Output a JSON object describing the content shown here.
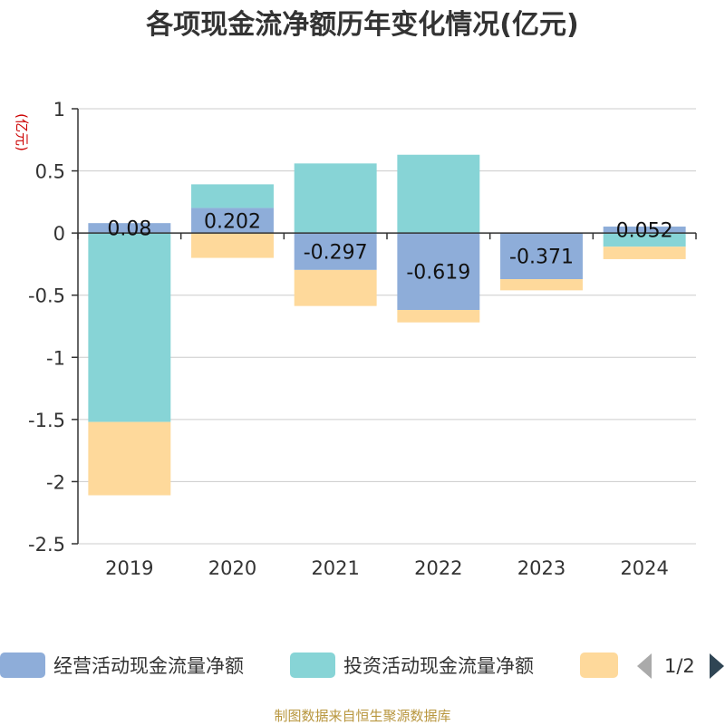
{
  "chart_data": {
    "type": "bar",
    "stacked": true,
    "title": "各项现金流净额历年变化情况(亿元)",
    "unit_label": "(亿元)",
    "categories": [
      "2019",
      "2020",
      "2021",
      "2022",
      "2023",
      "2024"
    ],
    "series": [
      {
        "name": "经营活动现金流量净额",
        "color": "#8eadd9",
        "values": [
          0.08,
          0.202,
          -0.297,
          -0.619,
          -0.371,
          0.052
        ],
        "labels": [
          "0.08",
          "0.202",
          "-0.297",
          "-0.619",
          "-0.371",
          "0.052"
        ]
      },
      {
        "name": "投资活动现金流量净额",
        "color": "#87d4d6",
        "values": [
          -1.52,
          0.19,
          0.56,
          0.63,
          0.0,
          -0.11
        ]
      },
      {
        "name": "",
        "color": "#fed99b",
        "values": [
          -0.59,
          -0.2,
          -0.29,
          -0.1,
          -0.09,
          -0.1
        ]
      }
    ],
    "ylim": [
      -2.5,
      1
    ],
    "yticks": [
      1,
      0.5,
      0,
      -0.5,
      -1,
      -1.5,
      -2,
      -2.5
    ],
    "ytick_labels": [
      "1",
      "0.5",
      "0",
      "-0.5",
      "-1",
      "-1.5",
      "-2",
      "-2.5"
    ],
    "grid": true
  },
  "legend": {
    "page": "1/2"
  },
  "footer": {
    "source": "制图数据来自恒生聚源数据库"
  }
}
